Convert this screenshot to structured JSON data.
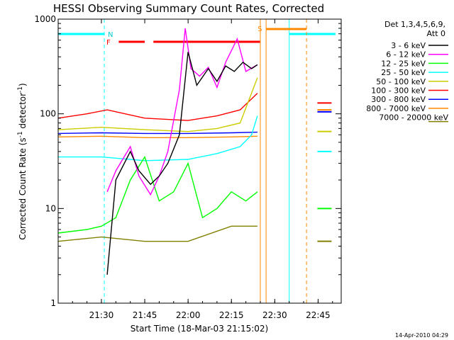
{
  "chart_data": {
    "type": "line",
    "title": "HESSI Observing Summary Count Rates, Corrected",
    "xlabel": "Start Time (18-Mar-03 21:15:02)",
    "ylabel_main": "Corrected Count Rate (s",
    "ylabel_sup1": "-1",
    "ylabel_mid": " detector",
    "ylabel_sup2": "-1",
    "ylabel_end": ")",
    "y_scale": "log",
    "ylim": [
      1,
      1000
    ],
    "xlim": [
      "21:15:02",
      "22:53:00"
    ],
    "x_ticks": [
      "21:30",
      "21:45",
      "22:00",
      "22:15",
      "22:30",
      "22:45"
    ],
    "y_ticks": [
      "1",
      "10",
      "100",
      "1000"
    ],
    "legend_header": "Det 1,3,4,5,6,9,",
    "legend_header2": "Att 0",
    "legend_right_label": "7000 - 20000 keV",
    "grid": false,
    "legend_placement": "right, outside plot",
    "flag_labels": {
      "N": "N",
      "F": "F",
      "S": "S"
    },
    "series": [
      {
        "name": "3 - 6 keV",
        "color": "#000000",
        "x": [
          "21:32",
          "21:35",
          "21:40",
          "21:43",
          "21:47",
          "21:50",
          "21:53",
          "21:57",
          "22:00",
          "22:03",
          "22:07",
          "22:10",
          "22:13",
          "22:16",
          "22:19",
          "22:22",
          "22:24"
        ],
        "values": [
          2,
          20,
          40,
          25,
          18,
          22,
          30,
          60,
          450,
          200,
          300,
          220,
          320,
          280,
          350,
          300,
          330
        ]
      },
      {
        "name": "6 - 12 keV",
        "color": "#ff00ff",
        "x": [
          "21:32",
          "21:35",
          "21:40",
          "21:43",
          "21:47",
          "21:50",
          "21:53",
          "21:57",
          "21:59",
          "22:01",
          "22:04",
          "22:07",
          "22:10",
          "22:13",
          "22:17",
          "22:20",
          "22:24"
        ],
        "values": [
          15,
          25,
          45,
          22,
          14,
          22,
          40,
          180,
          800,
          300,
          250,
          310,
          190,
          350,
          620,
          280,
          330
        ]
      },
      {
        "name": "12 - 25 keV",
        "color": "#00ff00",
        "x": [
          "21:15",
          "21:25",
          "21:30",
          "21:35",
          "21:40",
          "21:45",
          "21:50",
          "21:55",
          "22:00",
          "22:05",
          "22:10",
          "22:15",
          "22:20",
          "22:24"
        ],
        "values": [
          5.5,
          6,
          6.5,
          8,
          20,
          35,
          12,
          15,
          30,
          8,
          10,
          15,
          12,
          15
        ]
      },
      {
        "name": "25 - 50 keV",
        "color": "#00ffff",
        "x": [
          "21:15",
          "21:30",
          "21:45",
          "22:00",
          "22:10",
          "22:18",
          "22:22",
          "22:24"
        ],
        "values": [
          35,
          35,
          32,
          33,
          38,
          45,
          60,
          95
        ]
      },
      {
        "name": "50 - 100 keV",
        "color": "#cccc00",
        "x": [
          "21:15",
          "21:30",
          "21:45",
          "22:00",
          "22:10",
          "22:18",
          "22:24"
        ],
        "values": [
          68,
          72,
          68,
          65,
          70,
          80,
          240
        ]
      },
      {
        "name": "100 - 300 keV",
        "color": "#ff0000",
        "x": [
          "21:15",
          "21:25",
          "21:32",
          "21:45",
          "22:00",
          "22:10",
          "22:18",
          "22:24"
        ],
        "values": [
          90,
          100,
          110,
          90,
          85,
          95,
          110,
          165
        ]
      },
      {
        "name": "300 - 800 keV",
        "color": "#0000ff",
        "x": [
          "21:15",
          "21:30",
          "21:45",
          "22:00",
          "22:15",
          "22:24"
        ],
        "values": [
          62,
          63,
          62,
          62,
          63,
          64
        ]
      },
      {
        "name": "800 - 7000 keV",
        "color": "#ff8800",
        "x": [
          "21:15",
          "21:30",
          "21:45",
          "22:00",
          "22:15",
          "22:24"
        ],
        "values": [
          57,
          58,
          56,
          56,
          57,
          58
        ]
      },
      {
        "name": "7000 - 20000 keV",
        "color": "#808000",
        "x": [
          "21:15",
          "21:30",
          "21:45",
          "22:00",
          "22:15",
          "22:24"
        ],
        "values": [
          4.5,
          5,
          4.5,
          4.5,
          6.5,
          6.5
        ]
      }
    ],
    "after_gap_values": {
      "time": "22:45",
      "values": {
        "100 - 300 keV": 130,
        "800 - 7000 keV": 110,
        "300 - 800 keV": 105,
        "50 - 100 keV": 65,
        "25 - 50 keV": 40,
        "12 - 25 keV": 10,
        "7000 - 20000 keV": 4.5
      }
    },
    "flags": {
      "night": [
        [
          "21:15",
          "21:31"
        ],
        [
          "22:35",
          "22:51"
        ]
      ],
      "saa": [
        "22:27",
        "22:41"
      ],
      "flare": [
        [
          "21:36",
          "21:45"
        ],
        [
          "21:48",
          "22:25"
        ]
      ]
    },
    "footer_timestamp": "14-Apr-2010 04:29"
  }
}
